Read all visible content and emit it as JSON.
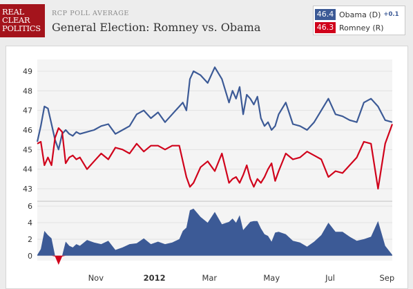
{
  "header": {
    "logo_lines": [
      "REAL",
      "CLEAR",
      "POLITICS"
    ],
    "subtitle": "RCP POLL AVERAGE",
    "title": "General Election: Romney vs. Obama"
  },
  "legend": {
    "obama": {
      "value": "46.4",
      "name": "Obama (D)",
      "delta": "+0.1",
      "color": "#3c5a96"
    },
    "romney": {
      "value": "46.3",
      "name": "Romney (R)",
      "color": "#d0021b"
    }
  },
  "colors": {
    "obama": "#3c5a96",
    "romney": "#d0021b",
    "spread_fill": "#3c5a96",
    "panel_bg": "#f4f4f4"
  },
  "chart_data": [
    {
      "type": "line",
      "title": "General Election: Romney vs. Obama",
      "ylim": [
        42.4,
        49.6
      ],
      "y_ticks": [
        43,
        44,
        45,
        46,
        47,
        48,
        49
      ],
      "y_tick_labels": [
        "43",
        "44",
        "45",
        "46",
        "47",
        "48",
        "49"
      ],
      "x_range": [
        0,
        100
      ],
      "grid": true,
      "legend_position": "top-right",
      "series": [
        {
          "name": "Obama (D)",
          "x": [
            0,
            1,
            2,
            3,
            4,
            5,
            6,
            7,
            8,
            9,
            10,
            11,
            12,
            14,
            16,
            18,
            20,
            22,
            24,
            26,
            28,
            30,
            32,
            34,
            36,
            38,
            40,
            41,
            42,
            43,
            44,
            46,
            48,
            50,
            52,
            54,
            55,
            56,
            57,
            58,
            59,
            60,
            61,
            62,
            63,
            64,
            65,
            66,
            67,
            68,
            70,
            72,
            74,
            76,
            78,
            80,
            82,
            84,
            86,
            88,
            90,
            92,
            94,
            96,
            98,
            100
          ],
          "values": [
            45.4,
            46.2,
            47.2,
            47.1,
            46.3,
            45.5,
            45.0,
            45.8,
            46.0,
            45.8,
            45.7,
            45.9,
            45.8,
            45.9,
            46.0,
            46.2,
            46.3,
            45.8,
            46.0,
            46.2,
            46.8,
            47.0,
            46.6,
            46.9,
            46.4,
            46.8,
            47.2,
            47.4,
            47.0,
            48.6,
            49.0,
            48.8,
            48.4,
            49.2,
            48.6,
            47.4,
            48.0,
            47.6,
            48.2,
            46.8,
            47.8,
            47.6,
            47.3,
            47.7,
            46.6,
            46.2,
            46.4,
            46.0,
            46.2,
            46.8,
            47.4,
            46.3,
            46.2,
            46.0,
            46.4,
            47.0,
            47.6,
            46.8,
            46.7,
            46.5,
            46.4,
            47.4,
            47.6,
            47.2,
            46.5,
            46.4
          ]
        },
        {
          "name": "Romney (R)",
          "x": [
            0,
            1,
            2,
            3,
            4,
            5,
            6,
            7,
            8,
            9,
            10,
            11,
            12,
            14,
            16,
            18,
            20,
            22,
            24,
            26,
            28,
            30,
            32,
            34,
            36,
            38,
            40,
            41,
            42,
            43,
            44,
            46,
            48,
            50,
            52,
            54,
            55,
            56,
            57,
            58,
            59,
            60,
            61,
            62,
            63,
            64,
            65,
            66,
            67,
            68,
            70,
            72,
            74,
            76,
            78,
            80,
            82,
            84,
            86,
            88,
            90,
            92,
            94,
            96,
            98,
            100
          ],
          "values": [
            45.3,
            45.4,
            44.2,
            44.6,
            44.2,
            45.6,
            46.1,
            45.9,
            44.3,
            44.6,
            44.7,
            44.5,
            44.6,
            44.0,
            44.4,
            44.8,
            44.5,
            45.1,
            45.0,
            44.8,
            45.3,
            44.9,
            45.2,
            45.2,
            45.0,
            45.2,
            45.2,
            44.4,
            43.6,
            43.1,
            43.3,
            44.1,
            44.4,
            43.9,
            44.8,
            43.3,
            43.5,
            43.6,
            43.3,
            43.7,
            44.2,
            43.5,
            43.1,
            43.5,
            43.3,
            43.6,
            44.0,
            44.3,
            43.4,
            43.9,
            44.8,
            44.5,
            44.6,
            44.9,
            44.7,
            44.5,
            43.6,
            43.9,
            43.8,
            44.2,
            44.6,
            45.4,
            45.3,
            43.0,
            45.3,
            46.3
          ]
        }
      ]
    },
    {
      "type": "area",
      "title": "",
      "ylim": [
        -0.6,
        6.6
      ],
      "y_ticks": [
        0,
        2,
        4,
        6
      ],
      "y_tick_labels": [
        "0",
        "2",
        "4",
        "6"
      ],
      "x_range": [
        0,
        100
      ],
      "grid": true,
      "x_tick_labels": [
        {
          "label": "Nov",
          "x": 16.5,
          "bold": false
        },
        {
          "label": "2012",
          "x": 33.0,
          "bold": true
        },
        {
          "label": "Mar",
          "x": 48.5,
          "bold": false
        },
        {
          "label": "May",
          "x": 66.0,
          "bold": false
        },
        {
          "label": "Jul",
          "x": 82.5,
          "bold": false
        },
        {
          "label": "Sep",
          "x": 98.5,
          "bold": false
        }
      ],
      "series": [
        {
          "name": "",
          "x": [
            0,
            1,
            2,
            3,
            4,
            5,
            6,
            7,
            8,
            9,
            10,
            11,
            12,
            14,
            16,
            18,
            20,
            22,
            24,
            26,
            28,
            30,
            32,
            34,
            36,
            38,
            40,
            41,
            42,
            43,
            44,
            46,
            48,
            50,
            52,
            54,
            55,
            56,
            57,
            58,
            59,
            60,
            61,
            62,
            63,
            64,
            65,
            66,
            67,
            68,
            70,
            72,
            74,
            76,
            78,
            80,
            82,
            84,
            86,
            88,
            90,
            92,
            94,
            96,
            98,
            100
          ],
          "values": [
            0.1,
            0.8,
            3.0,
            2.5,
            2.1,
            -0.1,
            -1.1,
            -0.1,
            1.7,
            1.2,
            1.0,
            1.4,
            1.2,
            1.9,
            1.6,
            1.4,
            1.8,
            0.7,
            1.0,
            1.4,
            1.5,
            2.1,
            1.4,
            1.7,
            1.4,
            1.6,
            2.0,
            3.0,
            3.4,
            5.5,
            5.7,
            4.7,
            4.0,
            5.3,
            3.8,
            4.1,
            4.5,
            4.0,
            4.9,
            3.1,
            3.6,
            4.1,
            4.2,
            4.2,
            3.3,
            2.6,
            2.4,
            1.7,
            2.8,
            2.9,
            2.6,
            1.8,
            1.6,
            1.1,
            1.7,
            2.5,
            4.0,
            2.9,
            2.9,
            2.3,
            1.8,
            2.0,
            2.3,
            4.2,
            1.2,
            0.1
          ]
        }
      ]
    }
  ]
}
